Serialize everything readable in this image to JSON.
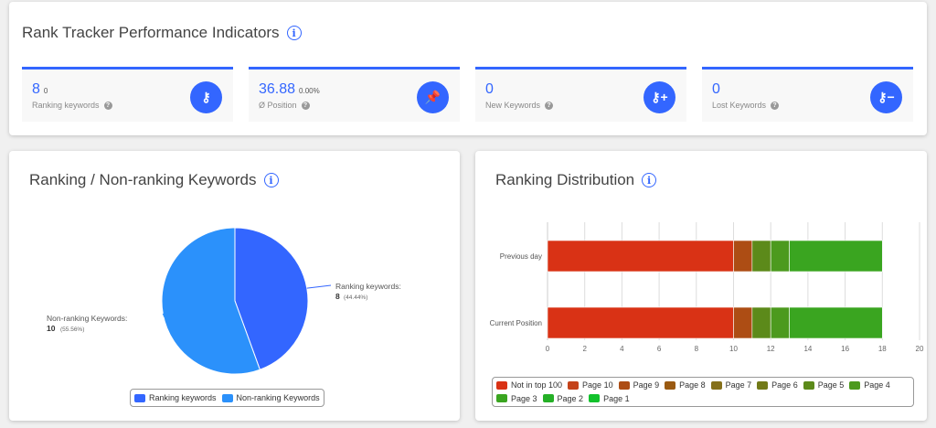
{
  "top": {
    "title": "Rank Tracker Performance Indicators",
    "kpis": [
      {
        "value": "8",
        "sub": "0",
        "label": "Ranking keywords",
        "icon": "key-icon"
      },
      {
        "value": "36.88",
        "sub": "0.00%",
        "label": "Ø Position",
        "icon": "pin-icon"
      },
      {
        "value": "0",
        "sub": "",
        "label": "New Keywords",
        "icon": "key-plus-icon"
      },
      {
        "value": "0",
        "sub": "",
        "label": "Lost Keywords",
        "icon": "key-minus-icon"
      }
    ]
  },
  "pie": {
    "title": "Ranking / Non-ranking Keywords"
  },
  "bars": {
    "title": "Ranking Distribution"
  },
  "chart_data": [
    {
      "type": "pie",
      "slices": [
        {
          "name": "Ranking keywords",
          "value": 8,
          "percent": "44.44%",
          "color": "#3366ff",
          "label": "Ranking keywords:",
          "value_label": "8",
          "pct_label": "(44.44%)"
        },
        {
          "name": "Non-ranking Keywords",
          "value": 10,
          "percent": "55.56%",
          "color": "#2b91fb",
          "label": "Non-ranking Keywords:",
          "value_label": "10",
          "pct_label": "(55.56%)"
        }
      ],
      "legend": "bottom"
    },
    {
      "type": "bar",
      "orientation": "horizontal",
      "stacked": true,
      "categories": [
        "Previous day",
        "Current Position"
      ],
      "xlim": [
        0,
        20
      ],
      "xticks": [
        "0",
        "2",
        "4",
        "6",
        "8",
        "10",
        "12",
        "14",
        "16",
        "18",
        "20"
      ],
      "grid": true,
      "legend": "bottom",
      "series": [
        {
          "name": "Not in top 100",
          "color": "#d93215",
          "values": [
            10,
            10
          ]
        },
        {
          "name": "Page 10",
          "color": "#c4431a",
          "values": [
            0,
            0
          ]
        },
        {
          "name": "Page 9",
          "color": "#ad4d14",
          "values": [
            1,
            1
          ]
        },
        {
          "name": "Page 8",
          "color": "#9a5a12",
          "values": [
            0,
            0
          ]
        },
        {
          "name": "Page 7",
          "color": "#85701a",
          "values": [
            0,
            0
          ]
        },
        {
          "name": "Page 6",
          "color": "#727a18",
          "values": [
            0,
            0
          ]
        },
        {
          "name": "Page 5",
          "color": "#5c8a1a",
          "values": [
            1,
            1
          ]
        },
        {
          "name": "Page 4",
          "color": "#4c9a1e",
          "values": [
            1,
            1
          ]
        },
        {
          "name": "Page 3",
          "color": "#3aa520",
          "values": [
            5,
            5
          ]
        },
        {
          "name": "Page 2",
          "color": "#25b027",
          "values": [
            0,
            0
          ]
        },
        {
          "name": "Page 1",
          "color": "#12c22c",
          "values": [
            0,
            0
          ]
        }
      ]
    }
  ]
}
